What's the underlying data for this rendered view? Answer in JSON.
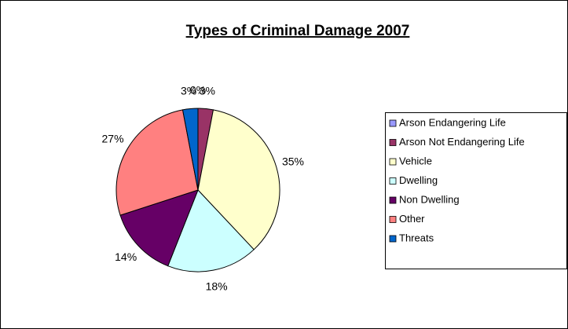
{
  "chart_data": {
    "type": "pie",
    "title": "Types of Criminal Damage 2007",
    "categories": [
      "Arson Endangering Life",
      "Arson Not Endangering Life",
      "Vehicle",
      "Dwelling",
      "Non Dwelling",
      "Other",
      "Threats"
    ],
    "values": [
      0,
      3,
      35,
      18,
      14,
      27,
      3
    ],
    "value_labels": [
      "0%",
      "3%",
      "35%",
      "18%",
      "14%",
      "27%",
      "3%"
    ],
    "colors": [
      "#9999ff",
      "#993366",
      "#ffffcc",
      "#ccffff",
      "#660066",
      "#ff8080",
      "#0066cc"
    ],
    "legend": "right"
  }
}
